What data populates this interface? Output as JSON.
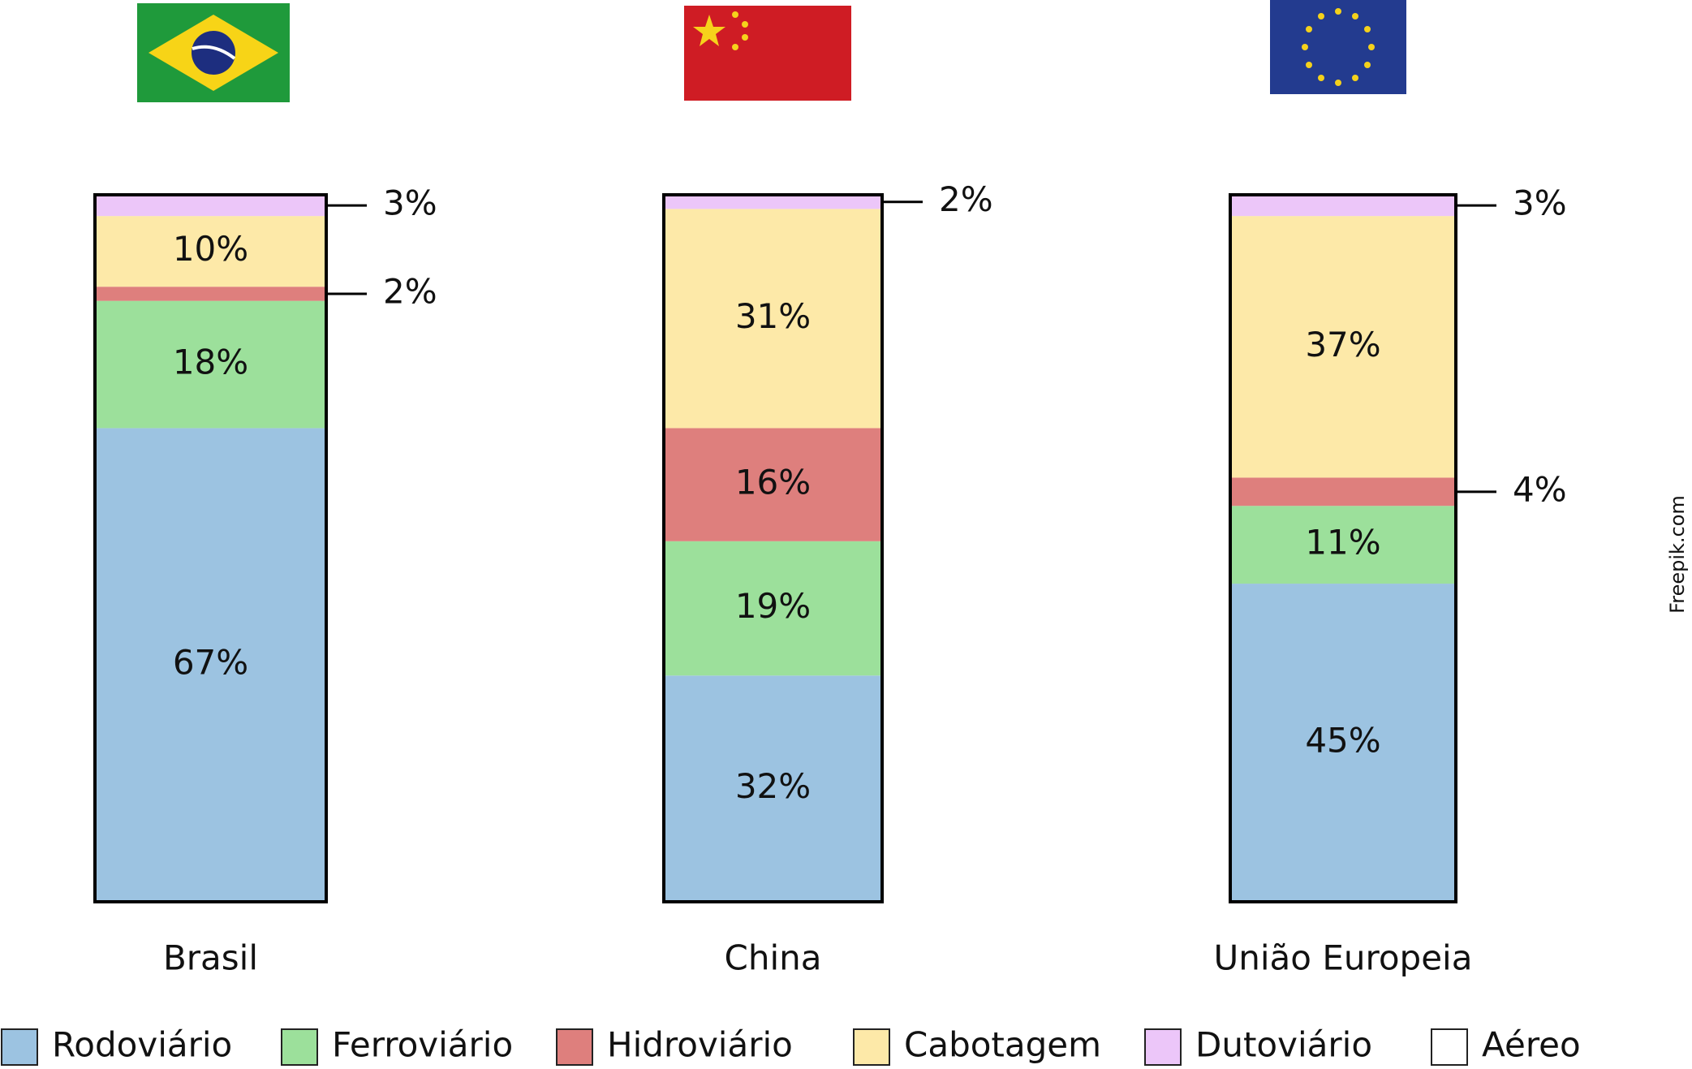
{
  "chart_data": {
    "type": "stacked_bar",
    "categories": [
      "Brasil",
      "China",
      "União Europeia"
    ],
    "series": [
      {
        "name": "Rodoviário",
        "color": "#9cc3e1",
        "values": [
          67,
          32,
          45
        ],
        "value_labels": [
          "67%",
          "32%",
          "45%"
        ]
      },
      {
        "name": "Ferroviário",
        "color": "#9ce09b",
        "values": [
          18,
          19,
          11
        ],
        "value_labels": [
          "18%",
          "19%",
          "11%"
        ]
      },
      {
        "name": "Hidroviário",
        "color": "#de7f7d",
        "values": [
          2,
          16,
          4
        ],
        "value_labels": [
          "2%",
          "16%",
          "4%"
        ]
      },
      {
        "name": "Cabotagem",
        "color": "#fde9a8",
        "values": [
          10,
          31,
          37
        ],
        "value_labels": [
          "10%",
          "31%",
          "37%"
        ]
      },
      {
        "name": "Dutoviário",
        "color": "#ecc6f9",
        "values": [
          3,
          2,
          3
        ],
        "value_labels": [
          "3%",
          "2%",
          "3%"
        ]
      },
      {
        "name": "Aéreo",
        "color": "#ffffff",
        "values": [
          0,
          0,
          0
        ]
      }
    ],
    "watermark": "Freepik.com"
  }
}
